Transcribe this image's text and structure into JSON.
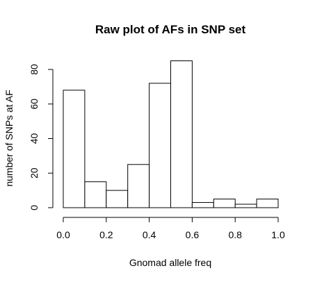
{
  "chart_data": {
    "type": "bar",
    "title": "Raw plot of AFs in SNP set",
    "xlabel": "Gnomad allele freq",
    "ylabel": "number of SNPs at AF",
    "bins": [
      {
        "start": 0.0,
        "end": 0.1,
        "count": 68
      },
      {
        "start": 0.1,
        "end": 0.2,
        "count": 15
      },
      {
        "start": 0.2,
        "end": 0.3,
        "count": 10
      },
      {
        "start": 0.3,
        "end": 0.4,
        "count": 25
      },
      {
        "start": 0.4,
        "end": 0.5,
        "count": 72
      },
      {
        "start": 0.5,
        "end": 0.6,
        "count": 85
      },
      {
        "start": 0.6,
        "end": 0.7,
        "count": 3
      },
      {
        "start": 0.7,
        "end": 0.8,
        "count": 5
      },
      {
        "start": 0.8,
        "end": 0.9,
        "count": 2
      },
      {
        "start": 0.9,
        "end": 1.0,
        "count": 5
      }
    ],
    "xlim": [
      0,
      1
    ],
    "ylim": [
      0,
      85
    ],
    "x_ticks": [
      0.0,
      0.2,
      0.4,
      0.6,
      0.8,
      1.0
    ],
    "x_tick_labels": [
      "0.0",
      "0.2",
      "0.4",
      "0.6",
      "0.8",
      "1.0"
    ],
    "y_ticks": [
      0,
      20,
      40,
      60,
      80
    ],
    "y_tick_labels": [
      "0",
      "20",
      "40",
      "60",
      "80"
    ],
    "grid": false,
    "legend": "none",
    "bar_fill": "#ffffff",
    "bar_stroke": "#000000"
  }
}
